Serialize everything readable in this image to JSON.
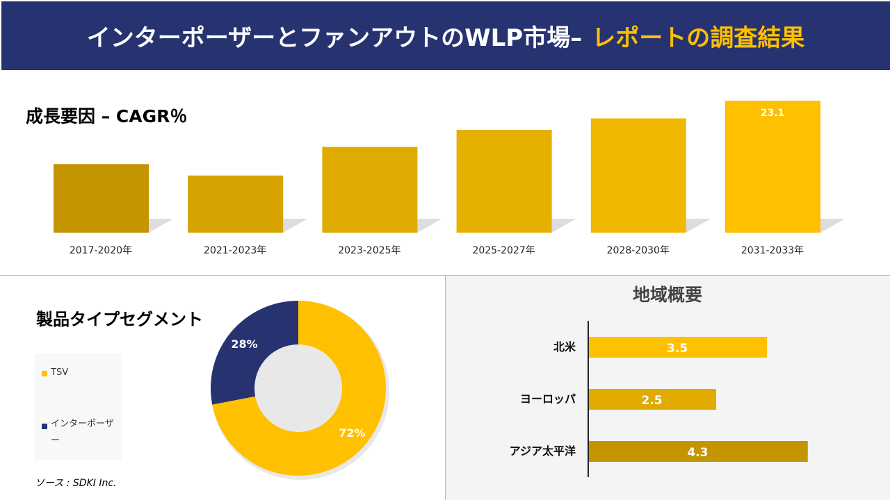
{
  "header": {
    "title": "インターポーザーとファンアウトのWLP市場–",
    "title_highlight": "レポートの調査結果"
  },
  "colors": {
    "navy": "#263370",
    "gold": "#ffc000",
    "dark_gold": "#c49500",
    "mid_gold": "#dfab00"
  },
  "chart_data": [
    {
      "type": "bar",
      "title": "成長要因 – CAGR％",
      "categories": [
        "2017-2020年",
        "2021-2023年",
        "2023-2025年",
        "2025-2027年",
        "2028-2030年",
        "2031-2033年"
      ],
      "values": [
        12.0,
        10.0,
        15.0,
        18.0,
        20.0,
        23.1
      ],
      "data_labels": [
        null,
        null,
        null,
        null,
        null,
        "23.1"
      ],
      "colors": [
        "#c49500",
        "#d6a300",
        "#dfab00",
        "#e6b000",
        "#f0b800",
        "#ffc000"
      ],
      "ylim": [
        0,
        23.1
      ]
    },
    {
      "type": "pie",
      "title": "製品タイプセグメント",
      "donut": true,
      "slices": [
        {
          "name": "TSV",
          "value": 72,
          "label": "72%",
          "color": "#ffc000"
        },
        {
          "name": "インターポーザー",
          "value": 28,
          "label": "28%",
          "color": "#263370"
        }
      ],
      "legend": "left"
    },
    {
      "type": "bar",
      "orientation": "horizontal",
      "title": "地域概要",
      "categories": [
        "北米",
        "ヨーロッパ",
        "アジア太平洋"
      ],
      "values": [
        3.5,
        2.5,
        4.3
      ],
      "colors": [
        "#ffc000",
        "#dfab00",
        "#c49500"
      ]
    }
  ],
  "source": "ソース : SDKI Inc."
}
